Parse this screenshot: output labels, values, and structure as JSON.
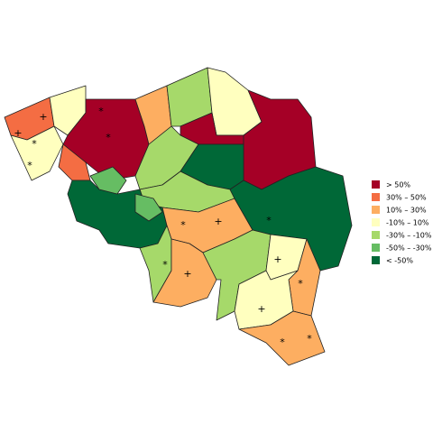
{
  "legend": {
    "items": [
      {
        "label": "> 50%",
        "color": "#a50026"
      },
      {
        "label": "30%  –  50%",
        "color": "#f46d43"
      },
      {
        "label": "10%  –  30%",
        "color": "#fdae61"
      },
      {
        "label": "-10%  –  10%",
        "color": "#ffffbf"
      },
      {
        "label": "-30%  –  -10%",
        "color": "#a6d96a"
      },
      {
        "label": "-50%  –  -30%",
        "color": "#66bd63"
      },
      {
        "label": "< -50%",
        "color": "#006837"
      }
    ]
  },
  "symbols": {
    "plus": "+",
    "star": "*"
  }
}
